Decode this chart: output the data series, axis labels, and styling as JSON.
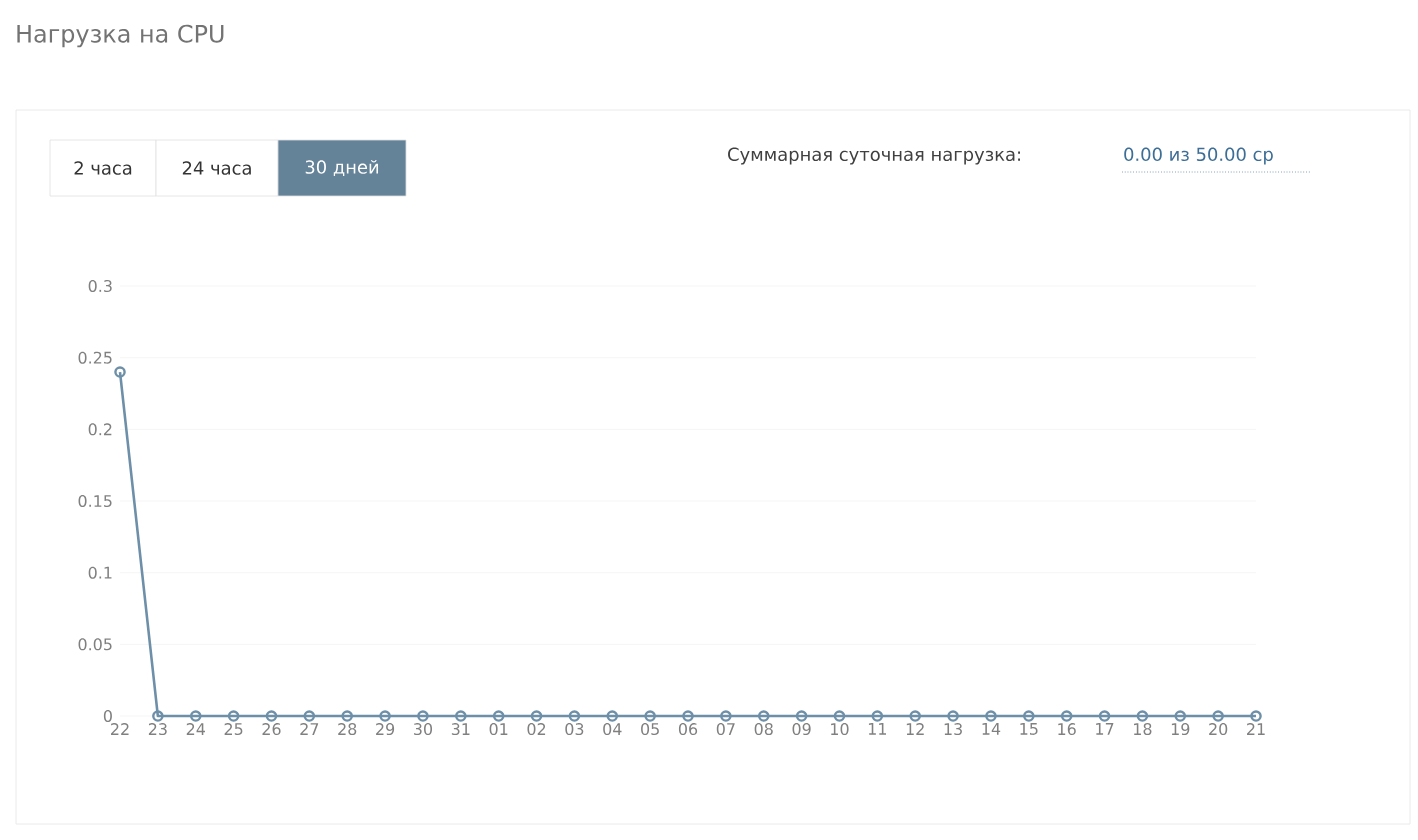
{
  "chart_data": {
    "type": "line",
    "title": "Нагрузка на CPU",
    "annotations": [
      "2 часа",
      "24 часа",
      "30 дней",
      "Суммарная суточная нагрузка:",
      "0.00 из 50.00 ср"
    ],
    "categories": [
      "22",
      "23",
      "24",
      "25",
      "26",
      "27",
      "28",
      "29",
      "30",
      "31",
      "01",
      "02",
      "03",
      "04",
      "05",
      "06",
      "07",
      "08",
      "09",
      "10",
      "11",
      "12",
      "13",
      "14",
      "15",
      "16",
      "17",
      "18",
      "19",
      "20",
      "21"
    ],
    "series": [
      {
        "color": "#6e8fa8",
        "values": [
          0.24,
          0,
          0,
          0,
          0,
          0,
          0,
          0,
          0,
          0,
          0,
          0,
          0,
          0,
          0,
          0,
          0,
          0,
          0,
          0,
          0,
          0,
          0,
          0,
          0,
          0,
          0,
          0,
          0,
          0,
          0
        ]
      }
    ],
    "ylim": [
      0,
      0.3
    ],
    "yticks": [
      0,
      0.05,
      0.1,
      0.15,
      0.2,
      0.25,
      0.3
    ],
    "grid": "y",
    "marker": "circle",
    "line_style": "solid"
  }
}
